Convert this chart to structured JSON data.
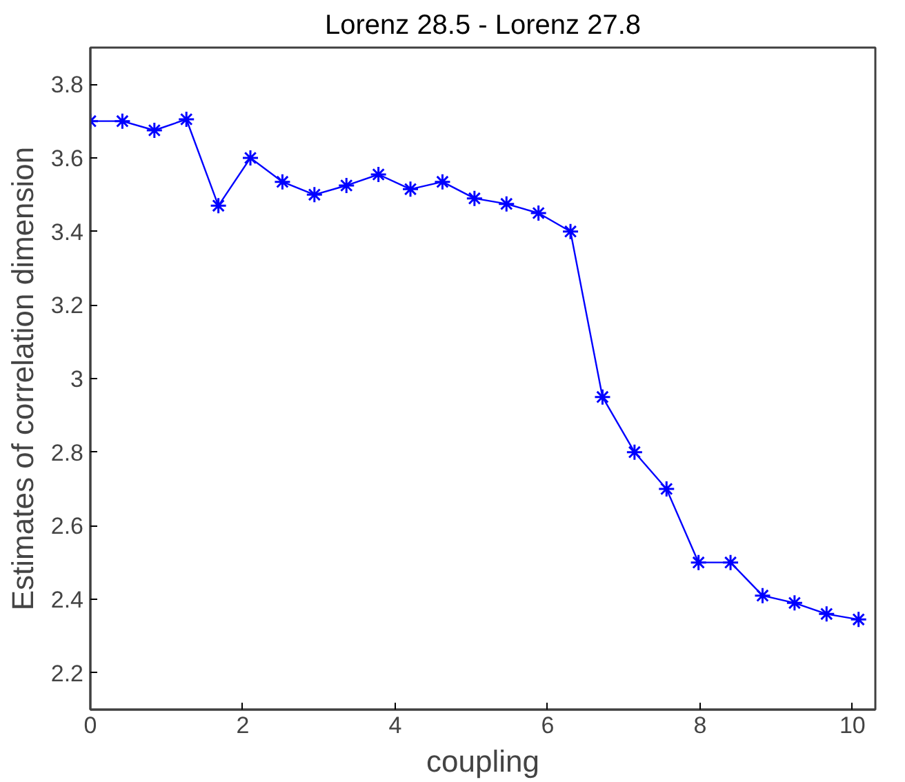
{
  "chart_data": {
    "type": "line",
    "title": "Lorenz 28.5 - Lorenz 27.8",
    "xlabel": "coupling",
    "ylabel": "Estimates of correlation dimension",
    "x": [
      0,
      0.42,
      0.84,
      1.26,
      1.68,
      2.1,
      2.52,
      2.94,
      3.36,
      3.78,
      4.2,
      4.62,
      5.04,
      5.46,
      5.88,
      6.3,
      6.72,
      7.14,
      7.56,
      7.98,
      8.4,
      8.82,
      9.24,
      9.66,
      10.08
    ],
    "series": [
      {
        "color": "#0000ff",
        "values": [
          3.7,
          3.7,
          3.675,
          3.705,
          3.47,
          3.6,
          3.535,
          3.5,
          3.525,
          3.555,
          3.515,
          3.535,
          3.49,
          3.475,
          3.45,
          3.4,
          2.95,
          2.8,
          2.7,
          2.5,
          2.5,
          2.41,
          2.39,
          2.36,
          2.345
        ]
      }
    ],
    "xlim": [
      0,
      10.3
    ],
    "ylim": [
      2.1,
      3.9
    ],
    "xticks": [
      0,
      2,
      4,
      6,
      8,
      10
    ],
    "yticks": [
      2.2,
      2.4,
      2.6,
      2.8,
      3,
      3.2,
      3.4,
      3.6,
      3.8
    ],
    "marker": "cross",
    "line_style": "solid",
    "grid": false
  }
}
